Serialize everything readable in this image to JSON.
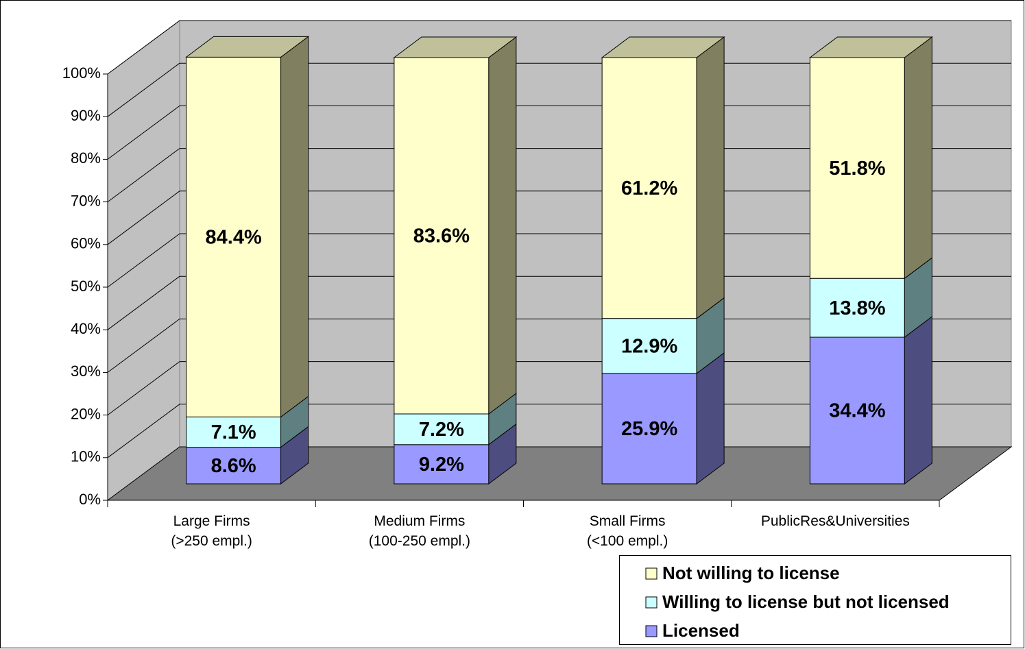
{
  "chart_data": {
    "type": "bar3d_stacked",
    "categories": [
      "Large Firms\n(>250  empl.)",
      "Medium Firms\n(100-250  empl.)",
      "Small Firms\n(<100  empl.)",
      "PublicRes&Universities"
    ],
    "series": [
      {
        "name": "Licensed",
        "color": "#9999ff",
        "side": "#4d4d80",
        "values": [
          8.6,
          9.2,
          25.9,
          34.4
        ],
        "value_labels": [
          "8.6%",
          "9.2%",
          "25.9%",
          "34.4%"
        ]
      },
      {
        "name": "Willing to license but not licensed",
        "color": "#ccffff",
        "side": "#5f8080",
        "values": [
          7.1,
          7.2,
          12.9,
          13.8
        ],
        "value_labels": [
          "7.1%",
          "7.2%",
          "12.9%",
          "13.8%"
        ]
      },
      {
        "name": "Not willing to license",
        "color": "#ffffcc",
        "side": "#808060",
        "top": "#c0c09a",
        "values": [
          84.4,
          83.6,
          61.2,
          51.8
        ],
        "value_labels": [
          "84.4%",
          "83.6%",
          "61.2%",
          "51.8%"
        ]
      }
    ],
    "ylim": [
      0,
      100
    ],
    "yticks": [
      {
        "value": 0,
        "label": "0%"
      },
      {
        "value": 10,
        "label": "10%"
      },
      {
        "value": 20,
        "label": "20%"
      },
      {
        "value": 30,
        "label": "30%"
      },
      {
        "value": 40,
        "label": "40%"
      },
      {
        "value": 50,
        "label": "50%"
      },
      {
        "value": 60,
        "label": "60%"
      },
      {
        "value": 70,
        "label": "70%"
      },
      {
        "value": 80,
        "label": "80%"
      },
      {
        "value": 90,
        "label": "90%"
      },
      {
        "value": 100,
        "label": "100%"
      }
    ],
    "grid": true,
    "legend": "bottom-right"
  }
}
